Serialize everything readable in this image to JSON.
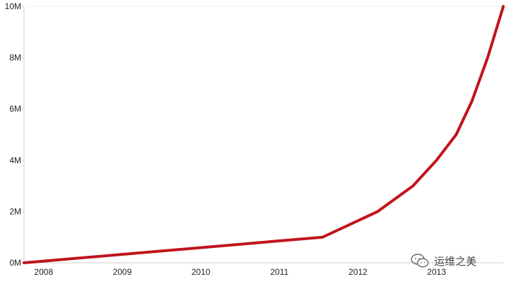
{
  "chart_data": {
    "type": "line",
    "title": "",
    "xlabel": "",
    "ylabel": "",
    "x_ticks": [
      "2008",
      "2009",
      "2010",
      "2011",
      "2012",
      "2013"
    ],
    "y_ticks": [
      "0M",
      "2M",
      "4M",
      "6M",
      "8M",
      "10M"
    ],
    "xlim": [
      2007.8,
      2013.9
    ],
    "ylim": [
      0,
      10
    ],
    "grid": false,
    "series": [
      {
        "color": "#c0141c",
        "points": [
          {
            "x": 2007.8,
            "y": 0.0
          },
          {
            "x": 2011.6,
            "y": 1.0
          },
          {
            "x": 2012.3,
            "y": 2.0
          },
          {
            "x": 2012.75,
            "y": 3.0
          },
          {
            "x": 2013.05,
            "y": 4.0
          },
          {
            "x": 2013.3,
            "y": 5.0
          },
          {
            "x": 2013.5,
            "y": 6.3
          },
          {
            "x": 2013.7,
            "y": 8.0
          },
          {
            "x": 2013.9,
            "y": 10.0
          }
        ]
      }
    ]
  },
  "watermark": {
    "text": "运维之美",
    "icon": "wechat-icon"
  }
}
